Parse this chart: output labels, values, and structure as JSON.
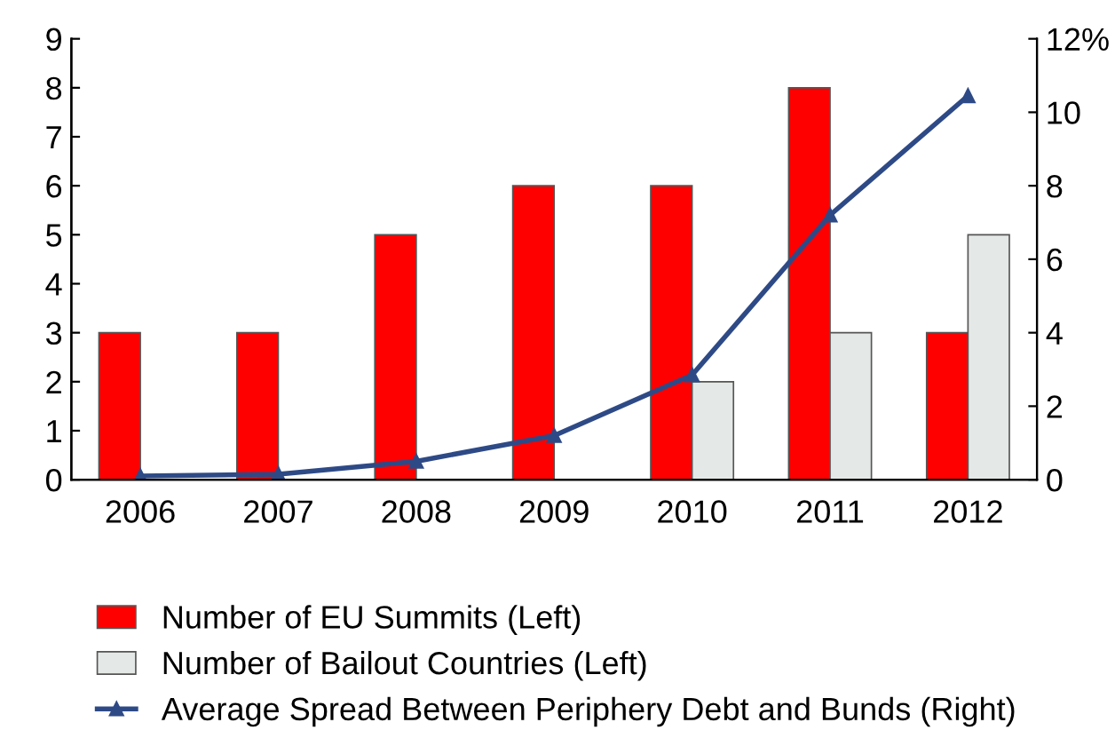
{
  "chart_data": {
    "type": "bar",
    "categories": [
      "2006",
      "2007",
      "2008",
      "2009",
      "2010",
      "2011",
      "2012"
    ],
    "series": [
      {
        "name": "Number of EU Summits (Left)",
        "color": "#ff0000",
        "values": [
          3,
          3,
          5,
          6,
          6,
          8,
          3
        ]
      },
      {
        "name": "Number of Bailout Countries (Left)",
        "color": "#e4e8e6",
        "values": [
          null,
          null,
          null,
          null,
          2,
          3,
          5
        ]
      },
      {
        "name": "Average Spread Between Periphery Debt and Bunds (Right)",
        "type": "line",
        "axis": "y2",
        "color": "#2e4a86",
        "marker": "triangle",
        "values": [
          0.1,
          0.15,
          0.5,
          1.2,
          2.85,
          7.2,
          10.45
        ]
      }
    ],
    "ylim": [
      0,
      9
    ],
    "yticks": [
      0,
      1,
      2,
      3,
      4,
      5,
      6,
      7,
      8,
      9
    ],
    "y2lim": [
      0,
      12
    ],
    "y2ticks": [
      0,
      2,
      4,
      6,
      8,
      10,
      {
        "value": 12,
        "label": "12%"
      }
    ],
    "grid": false,
    "legend": "bottom"
  }
}
